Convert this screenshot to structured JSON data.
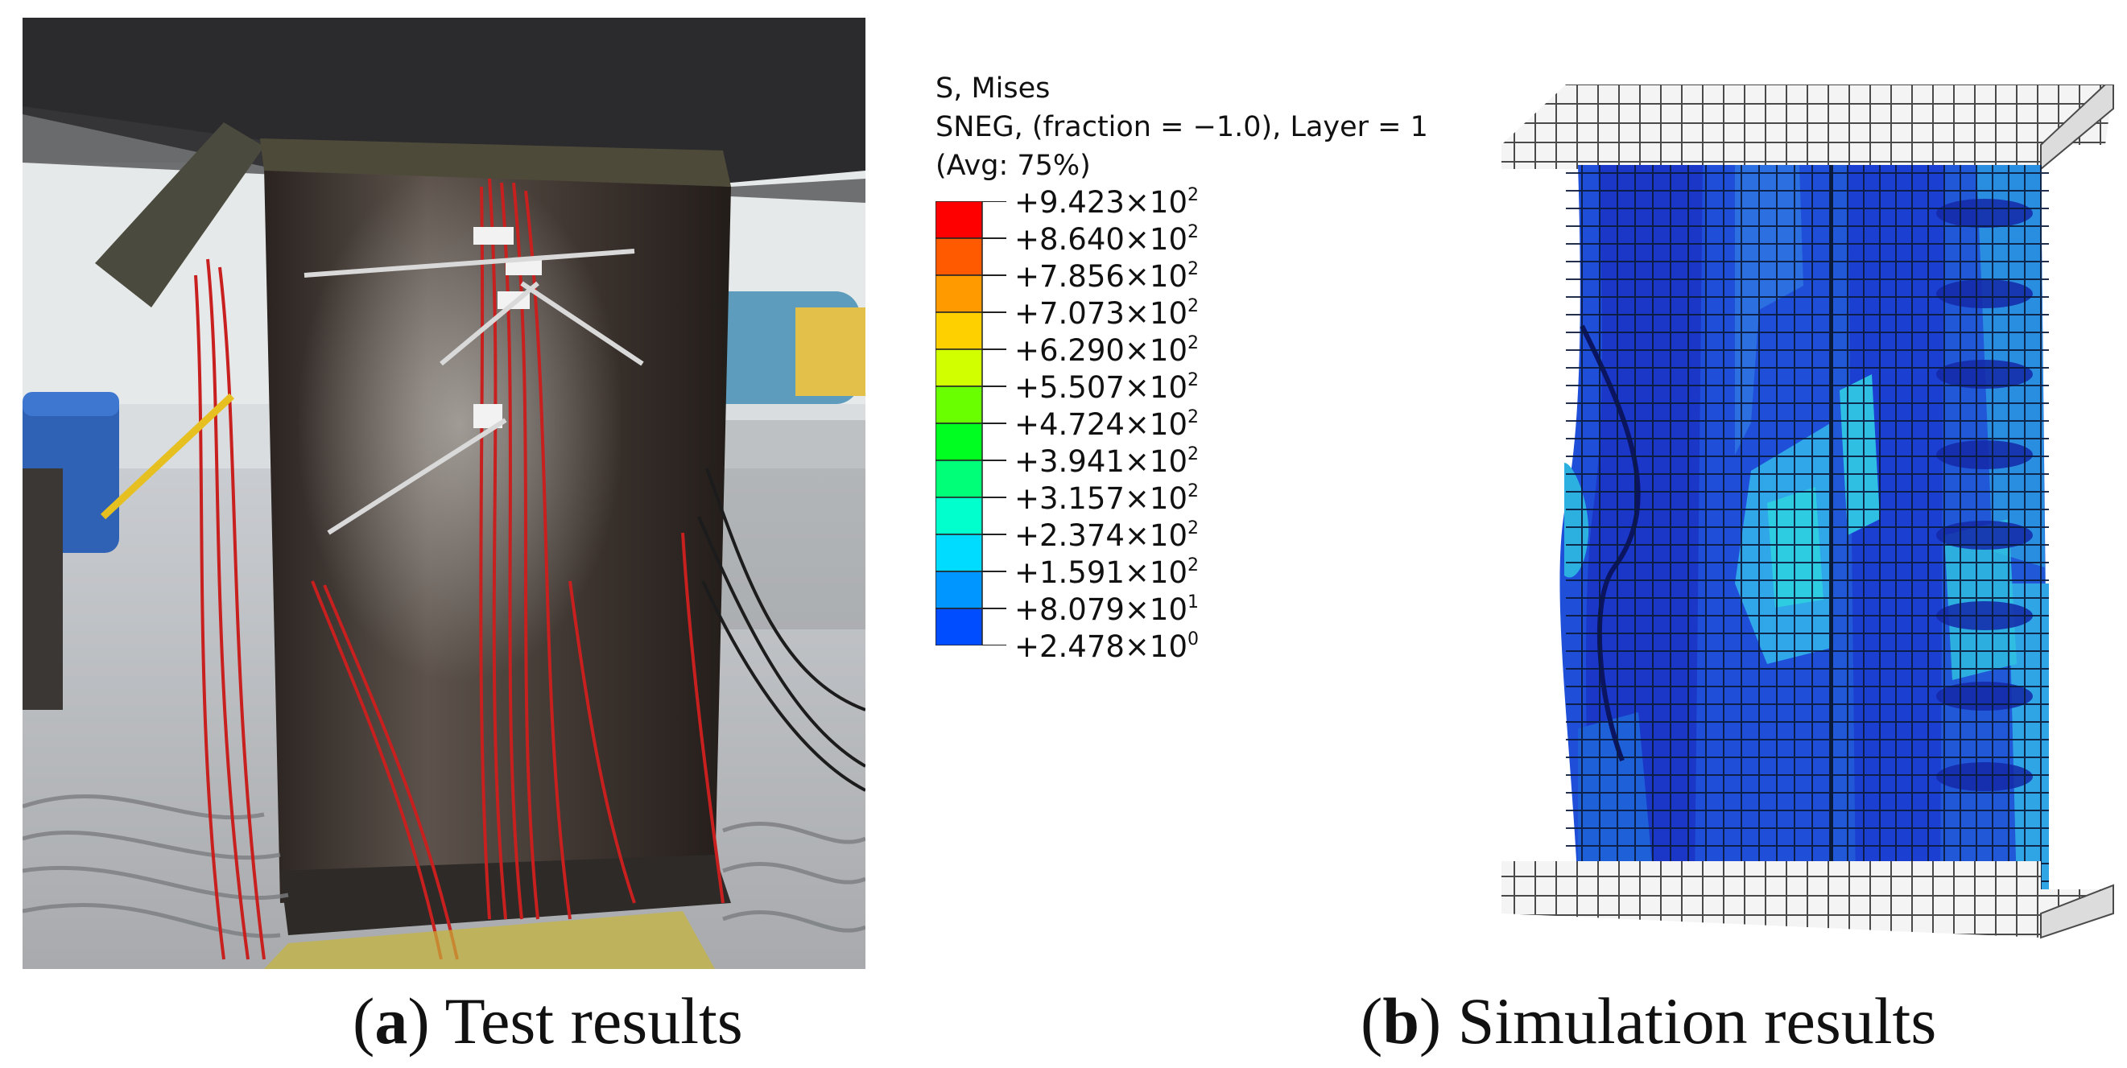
{
  "legend": {
    "title_line1": "S, Mises",
    "title_line2": "SNEG, (fraction = −1.0), Layer = 1",
    "title_line3": "(Avg: 75%)",
    "entries": [
      {
        "mantissa": "+9.423×10",
        "exp": "2",
        "color": "#ff0000"
      },
      {
        "mantissa": "+8.640×10",
        "exp": "2",
        "color": "#ff5a00"
      },
      {
        "mantissa": "+7.856×10",
        "exp": "2",
        "color": "#ff9a00"
      },
      {
        "mantissa": "+7.073×10",
        "exp": "2",
        "color": "#ffd000"
      },
      {
        "mantissa": "+6.290×10",
        "exp": "2",
        "color": "#d2ff00"
      },
      {
        "mantissa": "+5.507×10",
        "exp": "2",
        "color": "#6aff00"
      },
      {
        "mantissa": "+4.724×10",
        "exp": "2",
        "color": "#00ff20"
      },
      {
        "mantissa": "+3.941×10",
        "exp": "2",
        "color": "#00ff78"
      },
      {
        "mantissa": "+3.157×10",
        "exp": "2",
        "color": "#00ffcc"
      },
      {
        "mantissa": "+2.374×10",
        "exp": "2",
        "color": "#00dcff"
      },
      {
        "mantissa": "+1.591×10",
        "exp": "2",
        "color": "#0096ff"
      },
      {
        "mantissa": "+8.079×10",
        "exp": "1",
        "color": "#004cff"
      },
      {
        "mantissa": "+2.478×10",
        "exp": "0",
        "color": "#0000ff"
      }
    ]
  },
  "captions": {
    "a_letter": "a",
    "a_text": "Test results",
    "b_letter": "b",
    "b_text": "Simulation results"
  }
}
